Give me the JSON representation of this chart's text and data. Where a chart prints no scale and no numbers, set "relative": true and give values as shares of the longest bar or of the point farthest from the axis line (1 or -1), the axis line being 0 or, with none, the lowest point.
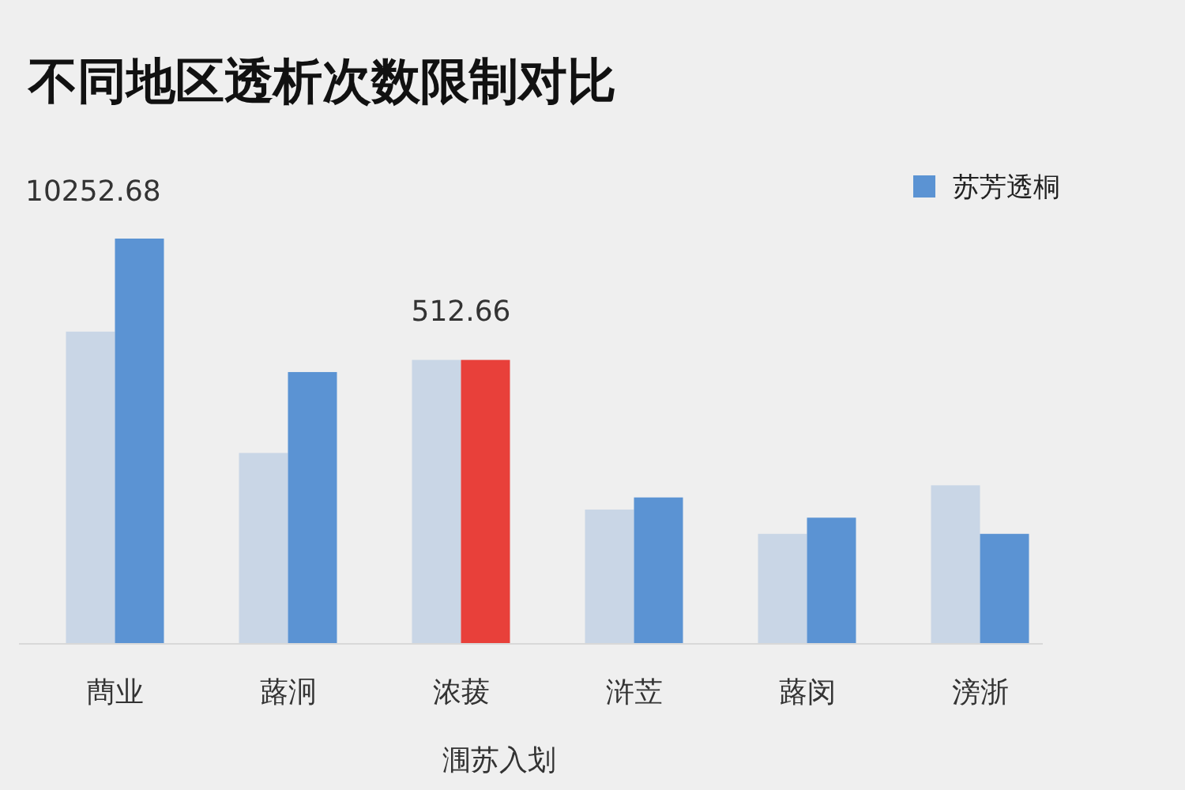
{
  "chart_data": {
    "type": "bar",
    "title": "不同地区透析次数限制对比",
    "xlabel": "涠苏入划",
    "relative": true,
    "legend": "top right",
    "categories": [
      "蔄业",
      "蕗泂",
      "浓菝",
      "浒苙",
      "蕗闵",
      "滂浙"
    ],
    "series": [
      {
        "color": "#c9d6e6",
        "values": [
          0.77,
          0.47,
          0.7,
          0.33,
          0.27,
          0.39
        ]
      },
      {
        "name": "苏芳透桐",
        "color": "#5b93d3",
        "colors": [
          "#5b93d3",
          "#5b93d3",
          "#e8403a",
          "#5b93d3",
          "#5b93d3",
          "#5b93d3"
        ],
        "values": [
          1,
          0.67,
          0.7,
          0.36,
          0.31,
          0.27
        ]
      }
    ],
    "annotations": [
      "10252.68",
      "512.66"
    ]
  }
}
